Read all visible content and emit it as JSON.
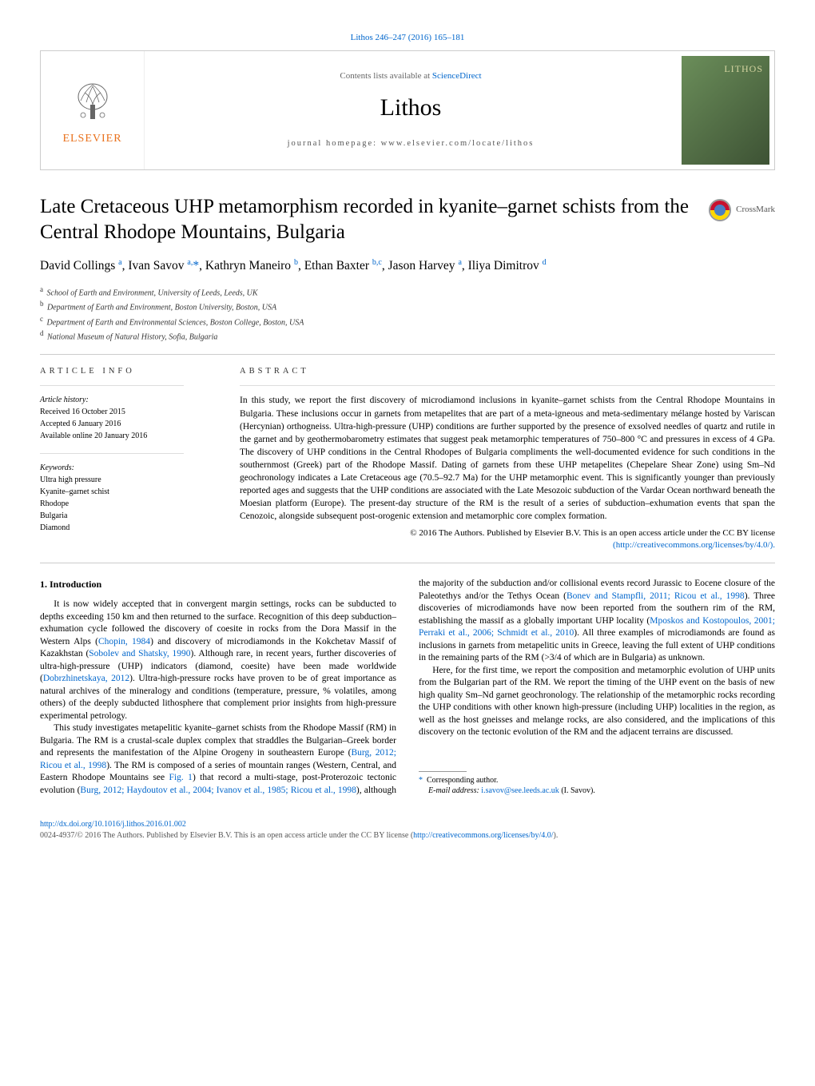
{
  "top_link": "Lithos 246–247 (2016) 165–181",
  "header": {
    "contents_prefix": "Contents lists available at ",
    "contents_link": "ScienceDirect",
    "journal": "Lithos",
    "homepage": "journal homepage: www.elsevier.com/locate/lithos",
    "elsevier": "ELSEVIER",
    "cover_text": "LITHOS"
  },
  "crossmark": "CrossMark",
  "title": "Late Cretaceous UHP metamorphism recorded in kyanite–garnet schists from the Central Rhodope Mountains, Bulgaria",
  "authors_html": "David Collings <sup>a</sup>, Ivan Savov <sup>a,</sup><span class='star'>*</span>, Kathryn Maneiro <sup>b</sup>, Ethan Baxter <sup>b,c</sup>, Jason Harvey <sup>a</sup>, Iliya Dimitrov <sup>d</sup>",
  "affiliations": {
    "a": "School of Earth and Environment, University of Leeds, Leeds, UK",
    "b": "Department of Earth and Environment, Boston University, Boston, USA",
    "c": "Department of Earth and Environmental Sciences, Boston College, Boston, USA",
    "d": "National Museum of Natural History, Sofia, Bulgaria"
  },
  "info": {
    "heading": "article info",
    "history_label": "Article history:",
    "received": "Received 16 October 2015",
    "accepted": "Accepted 6 January 2016",
    "online": "Available online 20 January 2016",
    "keywords_label": "Keywords:",
    "keywords": [
      "Ultra high pressure",
      "Kyanite–garnet schist",
      "Rhodope",
      "Bulgaria",
      "Diamond"
    ]
  },
  "abstract": {
    "heading": "abstract",
    "text": "In this study, we report the first discovery of microdiamond inclusions in kyanite–garnet schists from the Central Rhodope Mountains in Bulgaria. These inclusions occur in garnets from metapelites that are part of a meta-igneous and meta-sedimentary mélange hosted by Variscan (Hercynian) orthogneiss. Ultra-high-pressure (UHP) conditions are further supported by the presence of exsolved needles of quartz and rutile in the garnet and by geothermobarometry estimates that suggest peak metamorphic temperatures of 750–800 °C and pressures in excess of 4 GPa. The discovery of UHP conditions in the Central Rhodopes of Bulgaria compliments the well-documented evidence for such conditions in the southernmost (Greek) part of the Rhodope Massif. Dating of garnets from these UHP metapelites (Chepelare Shear Zone) using Sm–Nd geochronology indicates a Late Cretaceous age (70.5–92.7 Ma) for the UHP metamorphic event. This is significantly younger than previously reported ages and suggests that the UHP conditions are associated with the Late Mesozoic subduction of the Vardar Ocean northward beneath the Moesian platform (Europe). The present-day structure of the RM is the result of a series of subduction–exhumation events that span the Cenozoic, alongside subsequent post-orogenic extension and metamorphic core complex formation.",
    "copyright": "© 2016 The Authors. Published by Elsevier B.V. This is an open access article under the CC BY license",
    "license_url": "(http://creativecommons.org/licenses/by/4.0/)."
  },
  "section1": {
    "heading": "1. Introduction",
    "p1": "It is now widely accepted that in convergent margin settings, rocks can be subducted to depths exceeding 150 km and then returned to the surface. Recognition of this deep subduction–exhumation cycle followed the discovery of coesite in rocks from the Dora Massif in the Western Alps (Chopin, 1984) and discovery of microdiamonds in the Kokchetav Massif of Kazakhstan (Sobolev and Shatsky, 1990). Although rare, in recent years, further discoveries of ultra-high-pressure (UHP) indicators (diamond, coesite) have been made worldwide (Dobrzhinetskaya, 2012). Ultra-high-pressure rocks have proven to be of great importance as natural archives of the mineralogy and conditions (temperature, pressure, % volatiles, among others) of the deeply subducted lithosphere that complement prior insights from high-pressure experimental petrology.",
    "p2": "This study investigates metapelitic kyanite–garnet schists from the Rhodope Massif (RM) in Bulgaria. The RM is a crustal-scale duplex complex that straddles the Bulgarian–Greek border and represents the manifestation of the Alpine Orogeny in southeastern Europe (Burg, 2012; Ricou et al., 1998). The RM is composed of a series of mountain ranges (Western, Central, and Eastern Rhodope Mountains see Fig. 1) that record a multi-stage, post-Proterozoic tectonic evolution (Burg, 2012; Haydoutov et al., 2004; Ivanov et al., 1985; Ricou et al., 1998), although the majority of the subduction and/or collisional events record Jurassic to Eocene closure of the Paleotethys and/or the Tethys Ocean (Bonev and Stampfli, 2011; Ricou et al., 1998). Three discoveries of microdiamonds have now been reported from the southern rim of the RM, establishing the massif as a globally important UHP locality (Mposkos and Kostopoulos, 2001; Perraki et al., 2006; Schmidt et al., 2010). All three examples of microdiamonds are found as inclusions in garnets from metapelitic units in Greece, leaving the full extent of UHP conditions in the remaining parts of the RM (>3/4 of which are in Bulgaria) as unknown.",
    "p3": "Here, for the first time, we report the composition and metamorphic evolution of UHP units from the Bulgarian part of the RM. We report the timing of the UHP event on the basis of new high quality Sm–Nd garnet geochronology. The relationship of the metamorphic rocks recording the UHP conditions with other known high-pressure (including UHP) localities in the region, as well as the host gneisses and melange rocks, are also considered, and the implications of this discovery on the tectonic evolution of the RM and the adjacent terrains are discussed."
  },
  "corresponding": {
    "label": "Corresponding author.",
    "email_label": "E-mail address:",
    "email": "i.savov@see.leeds.ac.uk",
    "name": "(I. Savov)."
  },
  "footer": {
    "doi": "http://dx.doi.org/10.1016/j.lithos.2016.01.002",
    "issn_copy": "0024-4937/© 2016 The Authors. Published by Elsevier B.V. This is an open access article under the CC BY license (",
    "license": "http://creativecommons.org/licenses/by/4.0/",
    "close": ")."
  },
  "colors": {
    "link": "#0066cc",
    "elsevier_orange": "#e9711c",
    "rule": "#cccccc"
  }
}
